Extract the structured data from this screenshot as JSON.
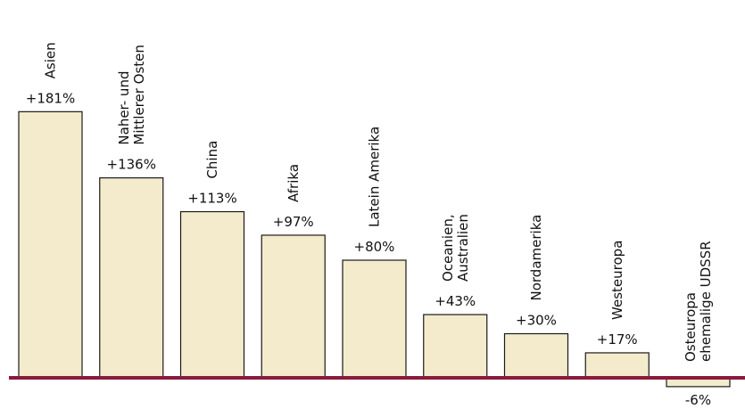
{
  "chart_data": {
    "type": "bar",
    "categories": [
      [
        "Asien"
      ],
      [
        "Naher- und",
        "Mittlerer Osten"
      ],
      [
        "China"
      ],
      [
        "Afrika"
      ],
      [
        "Latein Amerika"
      ],
      [
        "Oceanien,",
        "Australien"
      ],
      [
        "Nordamerika"
      ],
      [
        "Westeuropa"
      ],
      [
        "Osteuropa",
        "ehemalige UDSSR"
      ]
    ],
    "values": [
      181,
      136,
      113,
      97,
      80,
      43,
      30,
      17,
      -6
    ],
    "value_labels": [
      "+181%",
      "+136%",
      "+113%",
      "+97%",
      "+80%",
      "+43%",
      "+30%",
      "+17%",
      "-6%"
    ],
    "title": "",
    "xlabel": "",
    "ylabel": "",
    "ylim": [
      -6,
      181
    ],
    "grid": false,
    "legend": "none",
    "colors": {
      "bar_fill": "#f3ebcb",
      "bar_stroke": "#1a1a1a",
      "baseline": "#8b1a3c"
    }
  }
}
